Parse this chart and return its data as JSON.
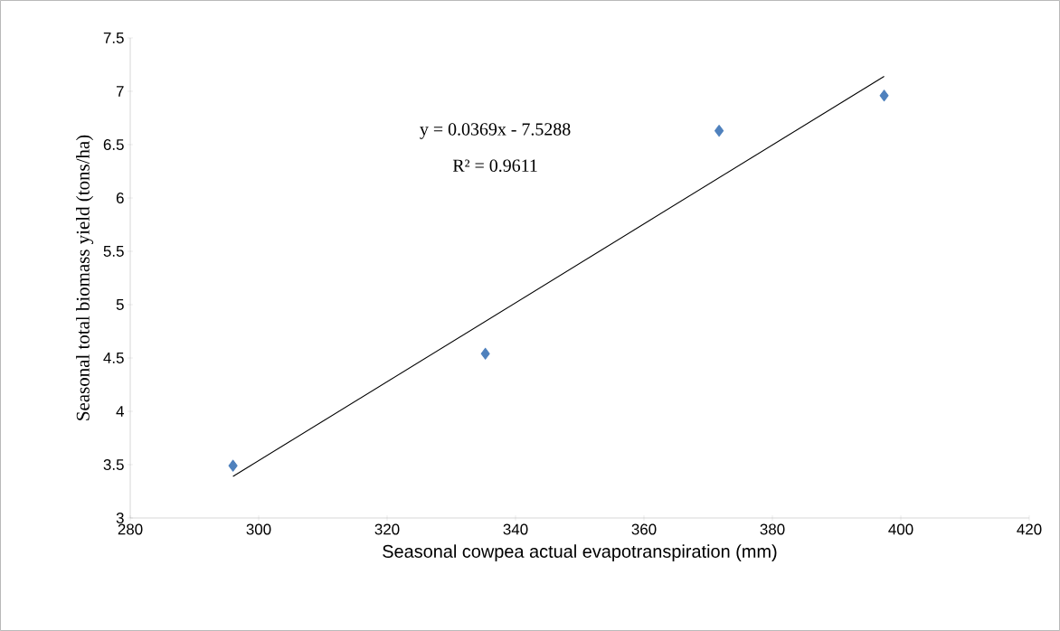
{
  "chart_data": {
    "type": "scatter",
    "xlabel": "Seasonal cowpea actual evapotranspiration (mm)",
    "ylabel": "Seasonal total biomass yield  (tons/ha)",
    "xlim": [
      280,
      420
    ],
    "xticks": [
      280,
      300,
      320,
      340,
      360,
      380,
      400,
      420
    ],
    "ylim": [
      3,
      7.5
    ],
    "yticks": [
      3,
      {
        "value": 3.5,
        "label": "3.5"
      },
      4,
      {
        "value": 4.5,
        "label": "4.5"
      },
      5,
      {
        "value": 5.5,
        "label": "5.5"
      },
      6,
      {
        "value": 6.5,
        "label": "6.5"
      },
      7,
      {
        "value": 7.5,
        "label": "7.5"
      }
    ],
    "grid": false,
    "marker": "diamond",
    "annotations": [
      "y = 0.0369x - 7.5288",
      "R² = 0.9611"
    ],
    "series": [
      {
        "color": "#4f81bd",
        "x": [
          296.0,
          335.3,
          371.7,
          397.4
        ],
        "values": [
          3.49,
          4.54,
          6.63,
          6.96
        ]
      },
      {
        "type": "line",
        "color": "#000000",
        "marker": "none",
        "x": [
          296.0,
          397.4
        ],
        "values": [
          3.39,
          7.14
        ]
      }
    ]
  }
}
